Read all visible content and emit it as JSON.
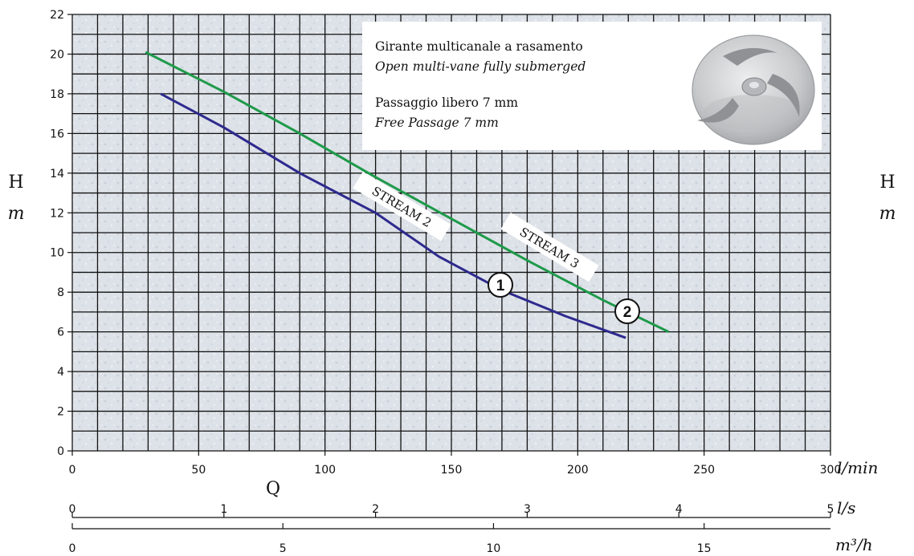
{
  "chart_data": {
    "type": "line",
    "x_axis": {
      "label": "Q",
      "scales": [
        {
          "unit": "l/min",
          "min": 0,
          "max": 300,
          "ticks": [
            "0",
            "50",
            "100",
            "150",
            "200",
            "250",
            "300"
          ]
        },
        {
          "unit": "l/s",
          "min": 0,
          "max": 5,
          "ticks": [
            "0",
            "1",
            "2",
            "3",
            "4",
            "5"
          ]
        },
        {
          "unit": "m³/h",
          "min": 0,
          "max": 18,
          "ticks": [
            "0",
            "5",
            "10",
            "15"
          ]
        }
      ]
    },
    "y_axis": {
      "label": "H",
      "unit": "m",
      "min": 0,
      "max": 22,
      "ticks": [
        "0",
        "2",
        "4",
        "6",
        "8",
        "10",
        "12",
        "14",
        "16",
        "18",
        "20",
        "22"
      ]
    },
    "grid": true,
    "series": [
      {
        "name": "STREAM 2",
        "marker": "1",
        "color": "#2e2a8e",
        "points": [
          [
            35,
            18.0
          ],
          [
            60,
            16.3
          ],
          [
            90,
            14.0
          ],
          [
            120,
            12.0
          ],
          [
            145,
            9.8
          ],
          [
            170,
            8.1
          ],
          [
            195,
            6.8
          ],
          [
            219,
            5.7
          ]
        ]
      },
      {
        "name": "STREAM 3",
        "marker": "2",
        "color": "#1e9a4a",
        "points": [
          [
            29,
            20.1
          ],
          [
            60,
            18.1
          ],
          [
            90,
            16.0
          ],
          [
            120,
            13.8
          ],
          [
            150,
            11.7
          ],
          [
            180,
            9.6
          ],
          [
            210,
            7.6
          ],
          [
            236,
            6.0
          ]
        ]
      }
    ],
    "info_box": {
      "line1": "Girante multicanale a rasamento",
      "line2": "Open multi-vane fully submerged",
      "line3": "Passaggio libero 7 mm",
      "line4": "Free Passage 7 mm"
    },
    "colors": {
      "grid": "#111111",
      "plot_bg": "#dfe4ea",
      "stream2": "#2e2a8e",
      "stream3": "#1e9a4a"
    }
  }
}
